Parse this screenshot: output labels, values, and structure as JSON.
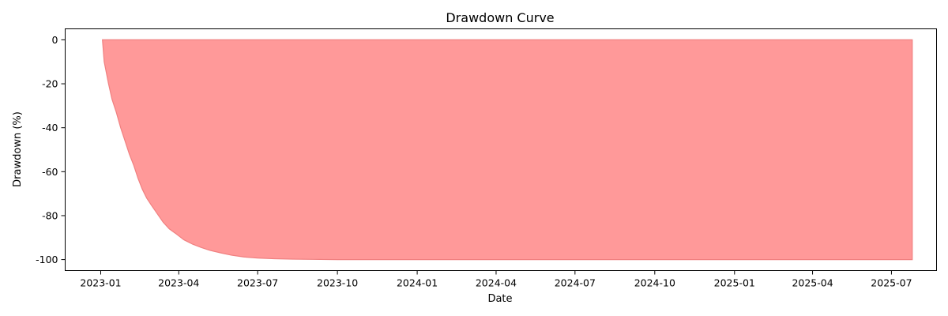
{
  "chart_data": {
    "type": "area",
    "title": "Drawdown Curve",
    "xlabel": "Date",
    "ylabel": "Drawdown (%)",
    "xlim": [
      "2022-11-21",
      "2025-08-22"
    ],
    "ylim": [
      -105,
      5
    ],
    "x_ticks": [
      "2023-01",
      "2023-04",
      "2023-07",
      "2023-10",
      "2024-01",
      "2024-04",
      "2024-07",
      "2024-10",
      "2025-01",
      "2025-04",
      "2025-07"
    ],
    "y_ticks": [
      0,
      -20,
      -40,
      -60,
      -80,
      -100
    ],
    "grid": false,
    "fill_color": "#ff9999",
    "line_color": "#f08080",
    "series": [
      {
        "x": [
          "2023-01-03",
          "2023-01-05",
          "2023-01-10",
          "2023-01-14",
          "2023-01-19",
          "2023-01-24",
          "2023-01-29",
          "2023-02-03",
          "2023-02-08",
          "2023-02-13",
          "2023-02-18",
          "2023-02-23",
          "2023-02-28",
          "2023-03-07",
          "2023-03-14",
          "2023-03-21",
          "2023-03-28",
          "2023-04-07",
          "2023-04-17",
          "2023-04-27",
          "2023-05-07",
          "2023-05-20",
          "2023-06-01",
          "2023-06-15",
          "2023-07-01",
          "2023-07-20",
          "2023-08-10",
          "2023-09-01",
          "2023-10-01",
          "2024-01-01",
          "2024-07-01",
          "2025-01-01",
          "2025-07-25"
        ],
        "y": [
          0,
          -10,
          -20,
          -27,
          -33,
          -40,
          -46,
          -52,
          -57,
          -63,
          -68,
          -72,
          -75,
          -79,
          -83,
          -86,
          -88,
          -91,
          -93,
          -94.5,
          -95.8,
          -97,
          -98,
          -98.8,
          -99.3,
          -99.6,
          -99.8,
          -99.9,
          -100,
          -100,
          -100,
          -100,
          -100
        ]
      }
    ]
  }
}
